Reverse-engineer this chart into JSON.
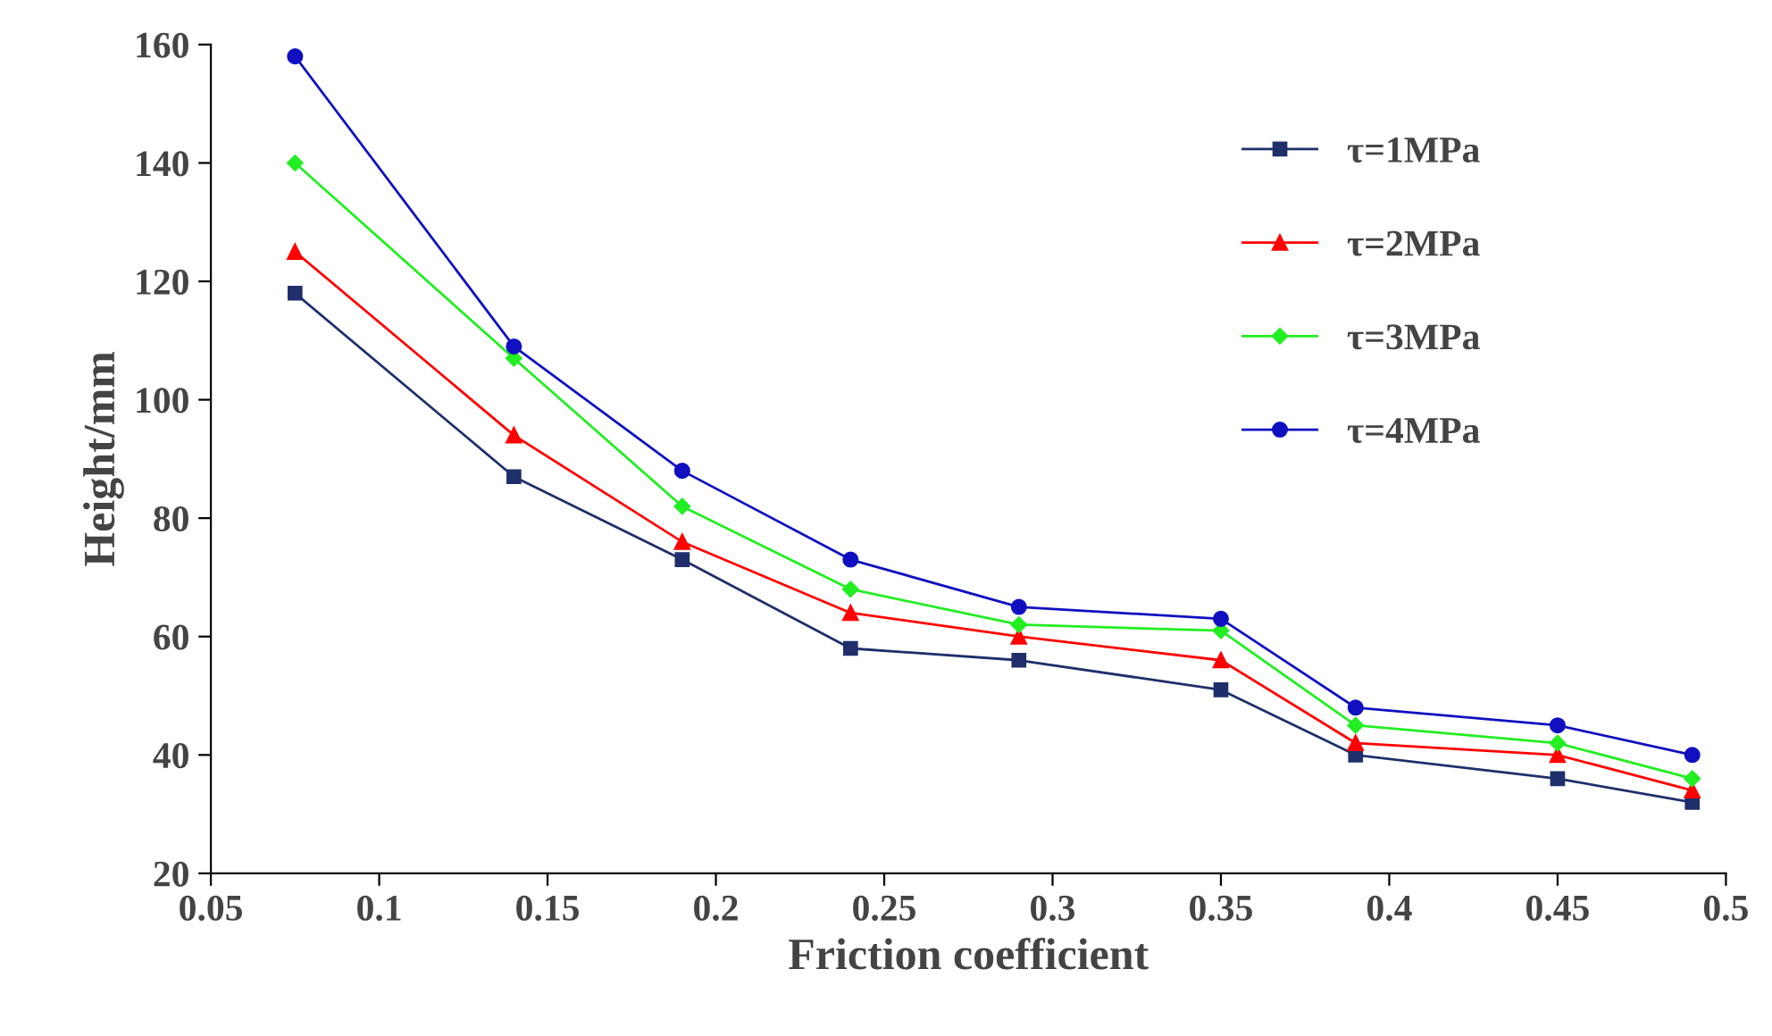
{
  "chart_data": {
    "type": "line",
    "xlabel": "Friction coefficient",
    "ylabel": "Height/mm",
    "x": [
      0.075,
      0.14,
      0.19,
      0.24,
      0.29,
      0.35,
      0.39,
      0.45,
      0.49
    ],
    "series": [
      {
        "name": "τ=1MPa",
        "color": "#1f2f6b",
        "marker": "square",
        "values": [
          118,
          87,
          73,
          58,
          56,
          51,
          40,
          36,
          32
        ]
      },
      {
        "name": "τ=2MPa",
        "color": "#ff0000",
        "marker": "triangle",
        "values": [
          125,
          94,
          76,
          64,
          60,
          56,
          42,
          40,
          34
        ]
      },
      {
        "name": "τ=3MPa",
        "color": "#22ee22",
        "marker": "diamond",
        "values": [
          140,
          107,
          82,
          68,
          62,
          61,
          45,
          42,
          36
        ]
      },
      {
        "name": "τ=4MPa",
        "color": "#1010c0",
        "marker": "circle",
        "values": [
          158,
          109,
          88,
          73,
          65,
          63,
          48,
          45,
          40
        ]
      }
    ],
    "xlim": [
      0.05,
      0.5
    ],
    "xticks": [
      0.05,
      0.1,
      0.15,
      0.2,
      0.25,
      0.3,
      0.35,
      0.4,
      0.45,
      0.5
    ],
    "ylim": [
      20,
      160
    ],
    "yticks": [
      20,
      40,
      60,
      80,
      100,
      120,
      140,
      160
    ],
    "grid": false,
    "legend": "top right",
    "line_style": "solid"
  }
}
